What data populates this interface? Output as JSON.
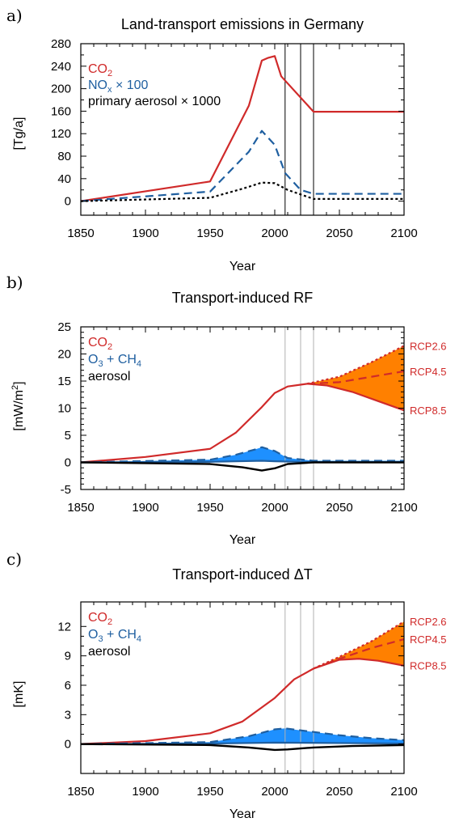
{
  "colors": {
    "co2": "#d02a2a",
    "nox": "#1f5fa0",
    "black": "#000000",
    "blue_fill": "#1e90ff",
    "orange_fill": "#ff8000",
    "vline": "#b0b0b0"
  },
  "chart_data": [
    {
      "type": "line",
      "panel": "a)",
      "title": "Land-transport emissions in Germany",
      "xlabel": "Year",
      "ylabel": "[Tg/a]",
      "xlim": [
        1850,
        2100
      ],
      "ylim": [
        -25,
        280
      ],
      "xticks": [
        1850,
        1900,
        1950,
        2000,
        2050,
        2100
      ],
      "yticks": [
        0,
        40,
        80,
        120,
        160,
        200,
        240,
        280
      ],
      "vlines": [
        2008,
        2020,
        2030
      ],
      "legend": {
        "placement": "top-left",
        "entries": [
          {
            "text": "CO",
            "sub": "2",
            "after": "",
            "color": "co2"
          },
          {
            "text": "NO",
            "sub": "x",
            "after": " × 100",
            "color": "nox"
          },
          {
            "text": "primary aerosol × 1000",
            "sub": "",
            "after": "",
            "color": "black"
          }
        ]
      },
      "series": [
        {
          "name": "CO2",
          "color": "co2",
          "dash": "solid",
          "x": [
            1850,
            1950,
            1980,
            1990,
            1995,
            2000,
            2005,
            2030,
            2100
          ],
          "y": [
            0,
            35,
            170,
            250,
            255,
            258,
            222,
            159,
            159
          ]
        },
        {
          "name": "NOx × 100",
          "color": "nox",
          "dash": "dashed",
          "x": [
            1850,
            1950,
            1980,
            1990,
            2000,
            2008,
            2020,
            2030,
            2100
          ],
          "y": [
            0,
            17,
            88,
            125,
            100,
            50,
            20,
            13,
            13
          ]
        },
        {
          "name": "primary aerosol × 1000",
          "color": "black",
          "dash": "dotted",
          "x": [
            1850,
            1950,
            1975,
            1990,
            2000,
            2010,
            2030,
            2100
          ],
          "y": [
            0,
            6,
            22,
            33,
            32,
            20,
            4,
            4
          ]
        }
      ]
    },
    {
      "type": "line",
      "panel": "b)",
      "title": "Transport-induced RF",
      "xlabel": "Year",
      "ylabel": "[mW/m",
      "ylabel_sup": "2",
      "ylabel_end": "]",
      "xlim": [
        1850,
        2100
      ],
      "ylim": [
        -5,
        25
      ],
      "xticks": [
        1850,
        1900,
        1950,
        2000,
        2050,
        2100
      ],
      "yticks": [
        -5,
        0,
        5,
        10,
        15,
        20,
        25
      ],
      "vlines": [
        2008,
        2020,
        2030
      ],
      "legend": {
        "placement": "top-left",
        "entries": [
          {
            "text": "CO",
            "sub": "2",
            "after": "",
            "color": "co2"
          },
          {
            "text": "O",
            "sub": "3",
            "after": " + CH",
            "sub2": "4",
            "color": "nox"
          },
          {
            "text": "aerosol",
            "sub": "",
            "after": "",
            "color": "black"
          }
        ]
      },
      "scenario_labels": [
        {
          "text": "RCP2.6",
          "y": 21.5
        },
        {
          "text": "RCP4.5",
          "y": 16.8
        },
        {
          "text": "RCP8.5",
          "y": 9.6
        }
      ],
      "series": [
        {
          "name": "CO2",
          "color": "co2",
          "dash": "solid",
          "x": [
            1850,
            1900,
            1950,
            1970,
            1990,
            2000,
            2010,
            2025
          ],
          "y": [
            0,
            1,
            2.5,
            5.5,
            10.2,
            12.8,
            14,
            14.5
          ]
        },
        {
          "name": "RCP2.6",
          "color": "co2",
          "dash": "dotted",
          "x": [
            2025,
            2050,
            2075,
            2100
          ],
          "y": [
            14.5,
            15.8,
            18.5,
            21.5
          ]
        },
        {
          "name": "RCP4.5",
          "color": "co2",
          "dash": "dashed",
          "x": [
            2025,
            2050,
            2075,
            2100
          ],
          "y": [
            14.5,
            14.8,
            15.8,
            16.8
          ]
        },
        {
          "name": "RCP8.5",
          "color": "co2",
          "dash": "solid",
          "x": [
            2025,
            2040,
            2060,
            2080,
            2100
          ],
          "y": [
            14.5,
            14.2,
            13,
            11.3,
            9.6
          ]
        },
        {
          "name": "O3 + CH4 upper",
          "color": "nox",
          "dash": "dashed",
          "fill": "blue_fill",
          "x": [
            1850,
            1950,
            1970,
            1985,
            1990,
            2000,
            2010,
            2030,
            2100
          ],
          "y": [
            0,
            0.5,
            1.4,
            2.4,
            2.8,
            2.1,
            0.8,
            0.3,
            0.3
          ]
        },
        {
          "name": "O3 + CH4 lower",
          "color": "nox",
          "dash": "solid",
          "x": [
            1850,
            1950,
            1990,
            2000,
            2030,
            2100
          ],
          "y": [
            0,
            0.1,
            0.3,
            0.2,
            0.05,
            0.05
          ]
        },
        {
          "name": "aerosol",
          "color": "black",
          "dash": "solid",
          "x": [
            1850,
            1950,
            1975,
            1990,
            2000,
            2010,
            2030,
            2100
          ],
          "y": [
            0,
            -0.3,
            -0.9,
            -1.5,
            -1.1,
            -0.3,
            0,
            0
          ]
        }
      ]
    },
    {
      "type": "line",
      "panel": "c)",
      "title": "Transport-induced ΔT",
      "xlabel": "Year",
      "ylabel": "[mK]",
      "xlim": [
        1850,
        2100
      ],
      "ylim": [
        -3,
        14.5
      ],
      "xticks": [
        1850,
        1900,
        1950,
        2000,
        2050,
        2100
      ],
      "yticks": [
        0,
        3,
        6,
        9,
        12
      ],
      "vlines": [
        2008,
        2020,
        2030
      ],
      "legend": {
        "placement": "top-left",
        "entries": [
          {
            "text": "CO",
            "sub": "2",
            "after": "",
            "color": "co2"
          },
          {
            "text": "O",
            "sub": "3",
            "after": " + CH",
            "sub2": "4",
            "color": "nox"
          },
          {
            "text": "aerosol",
            "sub": "",
            "after": "",
            "color": "black"
          }
        ]
      },
      "scenario_labels": [
        {
          "text": "RCP2.6",
          "y": 12.5
        },
        {
          "text": "RCP4.5",
          "y": 10.7
        },
        {
          "text": "RCP8.5",
          "y": 8.0
        }
      ],
      "series": [
        {
          "name": "CO2",
          "color": "co2",
          "dash": "solid",
          "x": [
            1850,
            1900,
            1950,
            1975,
            2000,
            2015,
            2030
          ],
          "y": [
            0,
            0.3,
            1.1,
            2.3,
            4.7,
            6.6,
            7.7
          ]
        },
        {
          "name": "RCP2.6",
          "color": "co2",
          "dash": "dotted",
          "x": [
            2030,
            2050,
            2075,
            2100
          ],
          "y": [
            7.7,
            8.9,
            10.5,
            12.5
          ]
        },
        {
          "name": "RCP4.5",
          "color": "co2",
          "dash": "dashed",
          "x": [
            2030,
            2050,
            2075,
            2100
          ],
          "y": [
            7.7,
            8.7,
            9.8,
            10.7
          ]
        },
        {
          "name": "RCP8.5",
          "color": "co2",
          "dash": "solid",
          "x": [
            2030,
            2050,
            2065,
            2080,
            2100
          ],
          "y": [
            7.7,
            8.6,
            8.7,
            8.5,
            8.0
          ]
        },
        {
          "name": "O3 + CH4 upper",
          "color": "nox",
          "dash": "dashed",
          "fill": "blue_fill",
          "x": [
            1850,
            1950,
            1980,
            2000,
            2008,
            2020,
            2050,
            2075,
            2100
          ],
          "y": [
            0,
            0.2,
            0.8,
            1.5,
            1.6,
            1.4,
            0.9,
            0.6,
            0.4
          ]
        },
        {
          "name": "O3 + CH4 lower",
          "color": "nox",
          "dash": "solid",
          "x": [
            1850,
            1950,
            2000,
            2050,
            2100
          ],
          "y": [
            0,
            0.05,
            0.15,
            0.1,
            0.05
          ]
        },
        {
          "name": "aerosol",
          "color": "black",
          "dash": "solid",
          "x": [
            1850,
            1950,
            1980,
            2000,
            2010,
            2030,
            2060,
            2100
          ],
          "y": [
            0,
            -0.1,
            -0.35,
            -0.6,
            -0.55,
            -0.35,
            -0.2,
            -0.1
          ]
        }
      ]
    }
  ]
}
